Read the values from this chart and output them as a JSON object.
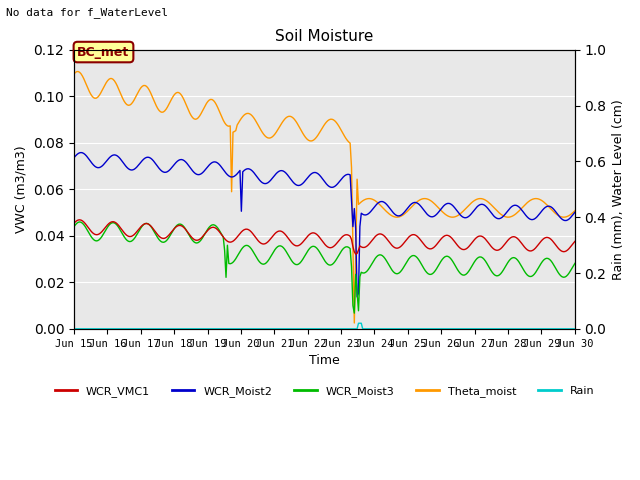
{
  "title": "Soil Moisture",
  "top_left_text": "No data for f_WaterLevel",
  "ylabel_left": "VWC (m3/m3)",
  "ylabel_right": "Rain (mm), Water Level (cm)",
  "xlabel": "Time",
  "ylim_left": [
    0.0,
    0.12
  ],
  "ylim_right": [
    0.0,
    1.0
  ],
  "plot_bg_color": "#e8e8e8",
  "legend_entries": [
    "WCR_VMC1",
    "WCR_Moist2",
    "WCR_Moist3",
    "Theta_moist",
    "Rain"
  ],
  "legend_colors": [
    "#cc0000",
    "#0000cc",
    "#00cc00",
    "#ff9900",
    "#00cccc"
  ],
  "bc_met_label": "BC_met",
  "xtick_labels": [
    "Jun 15",
    "Jun 16",
    "Jun 17",
    "Jun 18",
    "Jun 19",
    "Jun 20",
    "Jun 21",
    "Jun 22",
    "Jun 23",
    "Jun 24",
    "Jun 25",
    "Jun 26",
    "Jun 27",
    "Jun 28",
    "Jun 29",
    "Jun 30"
  ]
}
